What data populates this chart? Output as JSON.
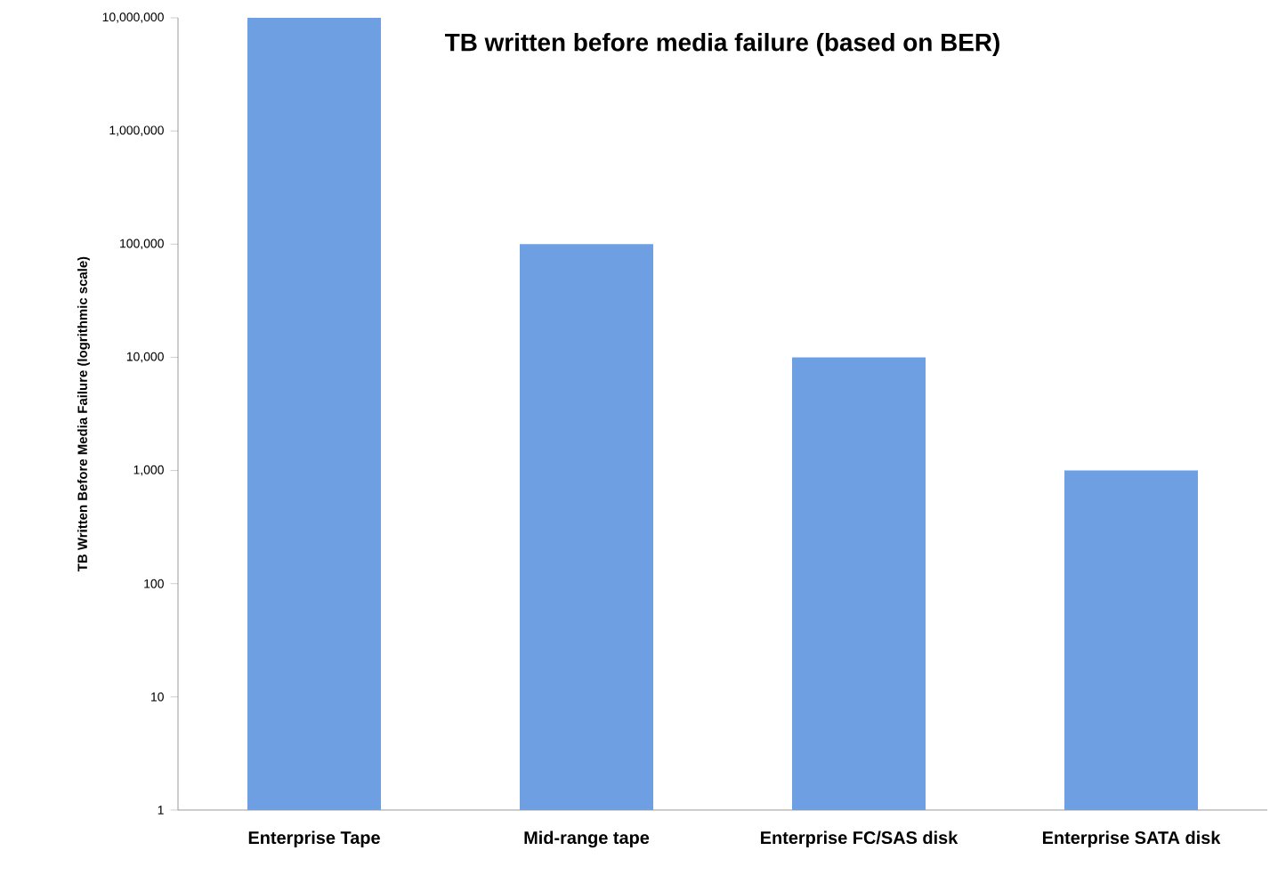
{
  "chart_data": {
    "type": "bar",
    "title": "TB written before media failure (based on BER)",
    "ylabel": "TB Written Before Media Failure (logrithmic scale)",
    "categories": [
      "Enterprise Tape",
      "Mid-range tape",
      "Enterprise FC/SAS disk",
      "Enterprise SATA disk"
    ],
    "values": [
      10000000,
      100000,
      10000,
      1000
    ],
    "color": "#6e9fe2",
    "log": true,
    "ylim": [
      1,
      10000000
    ],
    "yticks": [
      {
        "value": 1,
        "label": "1"
      },
      {
        "value": 10,
        "label": "10"
      },
      {
        "value": 100,
        "label": "100"
      },
      {
        "value": 1000,
        "label": "1,000"
      },
      {
        "value": 10000,
        "label": "10,000"
      },
      {
        "value": 100000,
        "label": "100,000"
      },
      {
        "value": 1000000,
        "label": "1,000,000"
      },
      {
        "value": 10000000,
        "label": "10,000,000"
      }
    ],
    "grid": false
  }
}
